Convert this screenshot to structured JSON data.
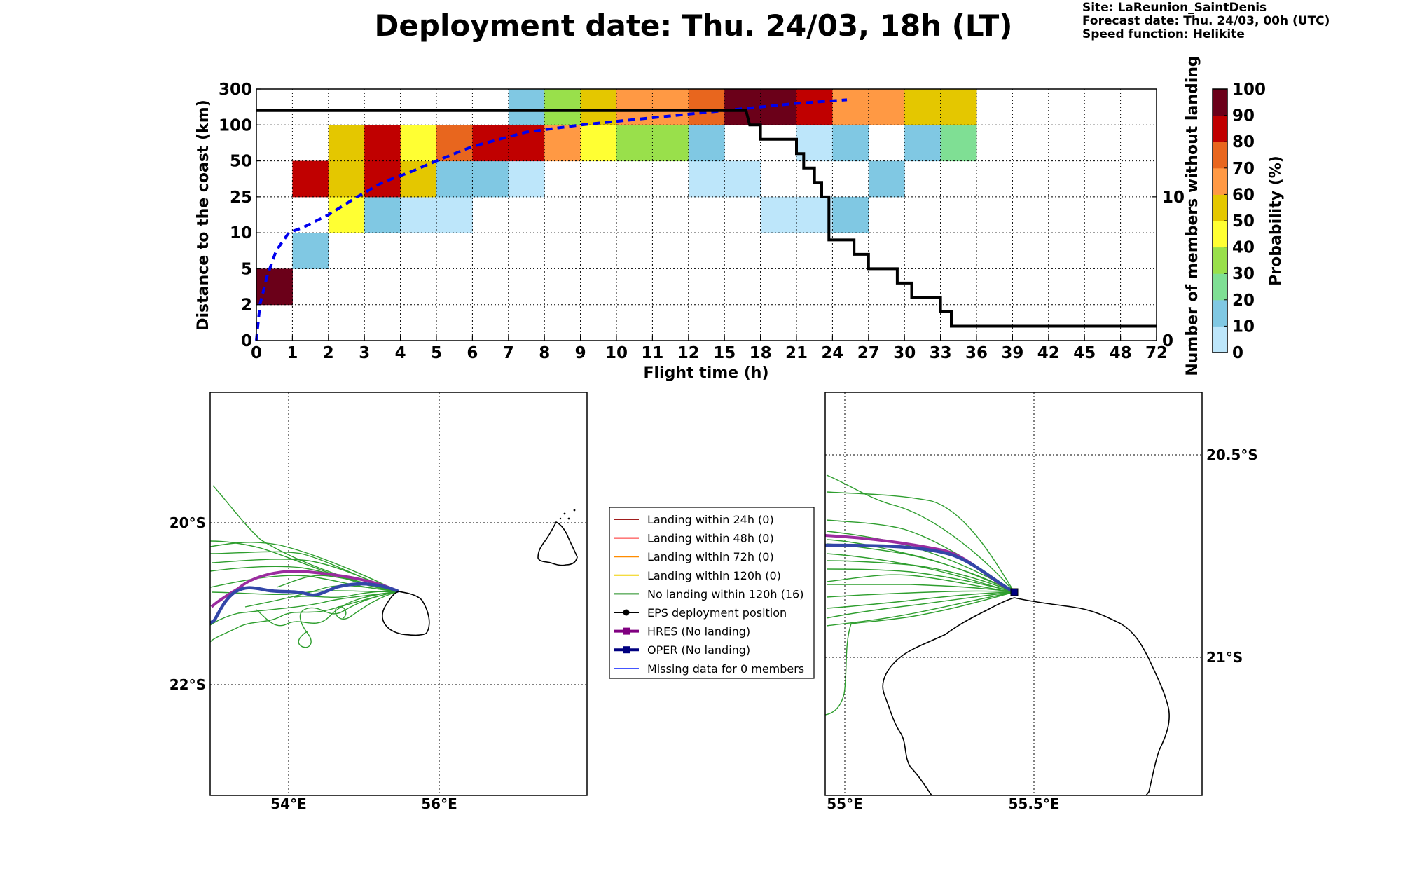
{
  "header": {
    "title": "Deployment date: Thu. 24/03, 18h (LT)",
    "site": "Site: LaReunion_SaintDenis",
    "forecast": "Forecast date: Thu. 24/03, 00h (UTC)",
    "speed": "Speed function: Helikite"
  },
  "colors": {
    "p0": "#bde6fa",
    "p10": "#80c8e3",
    "p20": "#7fdf94",
    "p30": "#99e04b",
    "p40": "#ffff33",
    "p50": "#e4c700",
    "p60": "#ff9944",
    "p70": "#e8661e",
    "p80": "#c00000",
    "p90": "#6b0019",
    "no_landing": "#2e9e2e",
    "hres": "#9b2c9f",
    "oper": "#3347a8",
    "mean": "#0000ee"
  },
  "chart_data": [
    {
      "type": "heatmap",
      "xlabel": "Flight time (h)",
      "ylabel": "Distance to the coast (km)",
      "ylabel_right": "Number of members without landing",
      "colorbar_label": "Probability (%)",
      "x_ticks": [
        "0",
        "1",
        "2",
        "3",
        "4",
        "5",
        "6",
        "7",
        "8",
        "9",
        "10",
        "11",
        "12",
        "15",
        "18",
        "21",
        "24",
        "27",
        "30",
        "33",
        "36",
        "39",
        "42",
        "45",
        "48",
        "72"
      ],
      "y_ticks": [
        "0",
        "2",
        "5",
        "10",
        "25",
        "50",
        "100",
        "300"
      ],
      "right_ticks": [
        {
          "label": "0",
          "value": 0
        },
        {
          "label": "10",
          "value": 10
        }
      ],
      "right_ylim": [
        0,
        17.5
      ],
      "colorbar_ticks": [
        "0",
        "10",
        "20",
        "30",
        "40",
        "50",
        "60",
        "70",
        "80",
        "90",
        "100"
      ],
      "grid": true,
      "cells": [
        {
          "x": 0,
          "y": 1,
          "p": 90
        },
        {
          "x": 1,
          "y": 2,
          "p": 10
        },
        {
          "x": 1,
          "y": 4,
          "p": 80
        },
        {
          "x": 2,
          "y": 3,
          "p": 40
        },
        {
          "x": 2,
          "y": 4,
          "p": 50
        },
        {
          "x": 2,
          "y": 5,
          "p": 50
        },
        {
          "x": 3,
          "y": 3,
          "p": 10
        },
        {
          "x": 3,
          "y": 4,
          "p": 80
        },
        {
          "x": 3,
          "y": 5,
          "p": 80
        },
        {
          "x": 4,
          "y": 3,
          "p": 0
        },
        {
          "x": 4,
          "y": 4,
          "p": 50
        },
        {
          "x": 4,
          "y": 5,
          "p": 40
        },
        {
          "x": 5,
          "y": 3,
          "p": 0
        },
        {
          "x": 5,
          "y": 4,
          "p": 10
        },
        {
          "x": 5,
          "y": 5,
          "p": 70
        },
        {
          "x": 6,
          "y": 4,
          "p": 10
        },
        {
          "x": 6,
          "y": 5,
          "p": 80
        },
        {
          "x": 7,
          "y": 4,
          "p": 0
        },
        {
          "x": 7,
          "y": 5,
          "p": 80
        },
        {
          "x": 7,
          "y": 6,
          "p": 10
        },
        {
          "x": 8,
          "y": 5,
          "p": 60
        },
        {
          "x": 8,
          "y": 6,
          "p": 30
        },
        {
          "x": 9,
          "y": 5,
          "p": 40
        },
        {
          "x": 9,
          "y": 6,
          "p": 50
        },
        {
          "x": 10,
          "y": 5,
          "p": 30
        },
        {
          "x": 10,
          "y": 6,
          "p": 60
        },
        {
          "x": 11,
          "y": 5,
          "p": 30
        },
        {
          "x": 11,
          "y": 6,
          "p": 60
        },
        {
          "x": 12,
          "y": 4,
          "p": 0
        },
        {
          "x": 12,
          "y": 5,
          "p": 10
        },
        {
          "x": 12,
          "y": 6,
          "p": 70
        },
        {
          "x": 13,
          "y": 4,
          "p": 0
        },
        {
          "x": 13,
          "y": 6,
          "p": 90
        },
        {
          "x": 14,
          "y": 3,
          "p": 0
        },
        {
          "x": 14,
          "y": 6,
          "p": 90
        },
        {
          "x": 15,
          "y": 3,
          "p": 0
        },
        {
          "x": 15,
          "y": 5,
          "p": 0
        },
        {
          "x": 15,
          "y": 6,
          "p": 80
        },
        {
          "x": 16,
          "y": 3,
          "p": 10
        },
        {
          "x": 16,
          "y": 5,
          "p": 10
        },
        {
          "x": 16,
          "y": 6,
          "p": 60
        },
        {
          "x": 17,
          "y": 4,
          "p": 10
        },
        {
          "x": 17,
          "y": 6,
          "p": 60
        },
        {
          "x": 18,
          "y": 5,
          "p": 10
        },
        {
          "x": 18,
          "y": 6,
          "p": 50
        },
        {
          "x": 19,
          "y": 5,
          "p": 20
        },
        {
          "x": 19,
          "y": 6,
          "p": 50
        }
      ],
      "members_without_landing": [
        [
          0,
          16
        ],
        [
          13.6,
          16
        ],
        [
          13.7,
          15
        ],
        [
          14.0,
          15
        ],
        [
          14.0,
          14
        ],
        [
          15.0,
          14
        ],
        [
          15.0,
          13
        ],
        [
          15.2,
          13
        ],
        [
          15.2,
          12
        ],
        [
          15.5,
          12
        ],
        [
          15.5,
          11
        ],
        [
          15.7,
          11
        ],
        [
          15.7,
          10
        ],
        [
          15.9,
          10
        ],
        [
          15.9,
          9
        ],
        [
          15.9,
          7
        ],
        [
          16.6,
          7
        ],
        [
          16.6,
          6
        ],
        [
          17.0,
          6
        ],
        [
          17.0,
          5
        ],
        [
          17.8,
          5
        ],
        [
          17.8,
          4
        ],
        [
          18.2,
          4
        ],
        [
          18.2,
          3
        ],
        [
          19.0,
          3
        ],
        [
          19.0,
          2
        ],
        [
          19.3,
          2
        ],
        [
          19.3,
          1
        ],
        [
          25,
          1
        ]
      ],
      "mean_distance": [
        [
          0,
          0
        ],
        [
          0.1,
          1.0
        ],
        [
          0.3,
          1.8
        ],
        [
          0.55,
          2.5
        ],
        [
          0.9,
          3.0
        ],
        [
          1.3,
          3.15
        ],
        [
          2.0,
          3.5
        ],
        [
          2.8,
          4.0
        ],
        [
          3.5,
          4.4
        ],
        [
          4.3,
          4.7
        ],
        [
          5.0,
          5.0
        ],
        [
          6.0,
          5.4
        ],
        [
          7.5,
          5.8
        ],
        [
          9.0,
          6.0
        ],
        [
          11.0,
          6.2
        ],
        [
          13.0,
          6.4
        ],
        [
          15.0,
          6.6
        ],
        [
          16.4,
          6.7
        ]
      ]
    },
    {
      "type": "map",
      "x_ticks": [
        "54°E",
        "56°E"
      ],
      "y_ticks": [
        "20°S",
        "22°S"
      ],
      "grid": true
    },
    {
      "type": "map",
      "x_ticks": [
        "55°E",
        "55.5°E"
      ],
      "y_ticks": [
        "20.5°S",
        "21°S"
      ],
      "grid": true
    }
  ],
  "legend": {
    "items": [
      {
        "label": "Landing within 24h (0)",
        "color": "#a01d1d",
        "marker": "none",
        "width": 2
      },
      {
        "label": "Landing within 48h (0)",
        "color": "#ff2a2a",
        "marker": "none",
        "width": 2
      },
      {
        "label": "Landing within 72h (0)",
        "color": "#ff8c00",
        "marker": "none",
        "width": 2
      },
      {
        "label": "Landing within 120h (0)",
        "color": "#f0d000",
        "marker": "none",
        "width": 2
      },
      {
        "label": "No landing within 120h (16)",
        "color": "#1f8c1f",
        "marker": "none",
        "width": 2
      },
      {
        "label": "EPS deployment position",
        "color": "#000000",
        "marker": "circle",
        "width": 2
      },
      {
        "label": "HRES (No landing)",
        "color": "#800080",
        "marker": "square",
        "width": 4
      },
      {
        "label": "OPER (No landing)",
        "color": "#000080",
        "marker": "square",
        "width": 4
      },
      {
        "label": "Missing data for 0 members",
        "color": "#4455ff",
        "marker": "none",
        "width": 1.5
      }
    ]
  }
}
